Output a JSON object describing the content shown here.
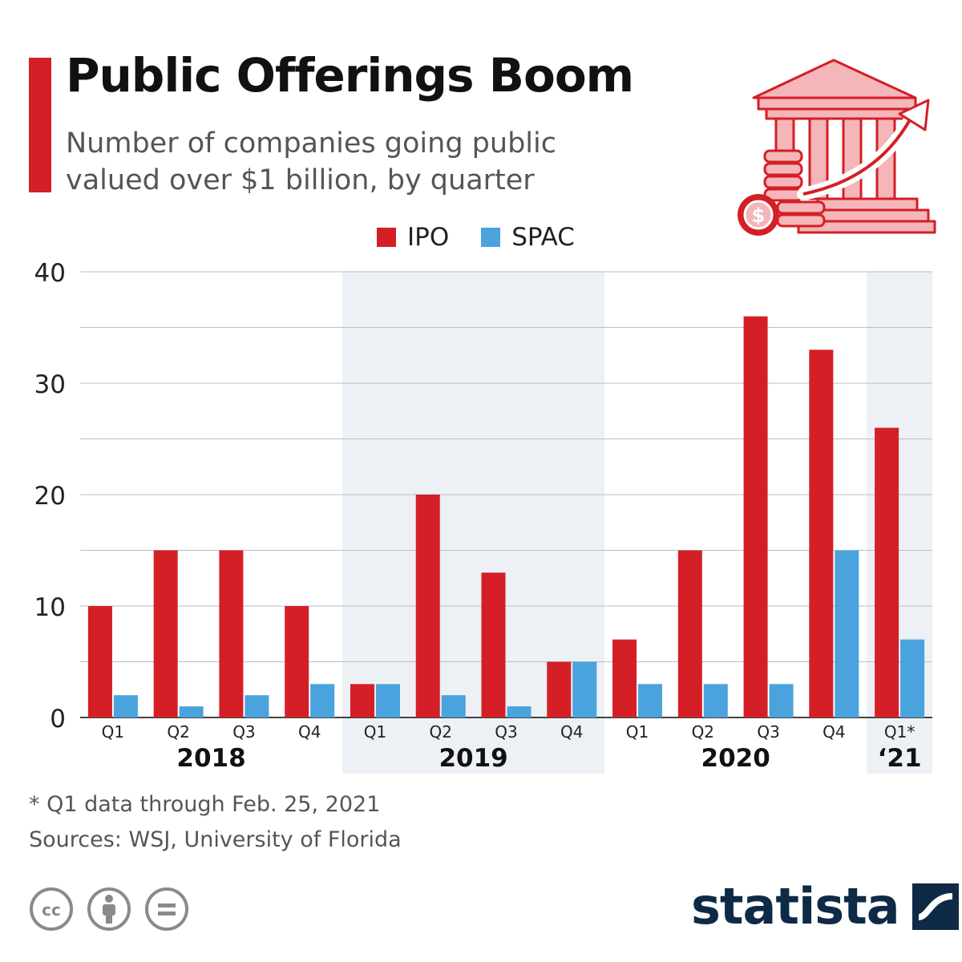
{
  "header": {
    "title": "Public Offerings Boom",
    "subtitle": "Number of companies going public\nvalued over $1 billion, by quarter"
  },
  "colors": {
    "ipo": "#d41f26",
    "spac": "#4aa3dc",
    "band": "#edf1f6",
    "grid": "#b9bec5",
    "accent": "#d41f26",
    "brand": "#0e2a47"
  },
  "icons": {
    "header": "bank-with-coins-and-arrow-icon",
    "license": [
      "cc-icon",
      "attribution-icon",
      "no-derivatives-icon"
    ],
    "brand": "statista-logo-icon"
  },
  "chart_data": {
    "type": "bar",
    "title": "Public Offerings Boom",
    "subtitle": "Number of companies going public valued over $1 billion, by quarter",
    "xlabel": "",
    "ylabel": "",
    "ylim": [
      0,
      40
    ],
    "yticks": [
      0,
      10,
      20,
      30,
      40
    ],
    "grid": true,
    "legend_position": "top-center",
    "categories": [
      "Q1",
      "Q2",
      "Q3",
      "Q4",
      "Q1",
      "Q2",
      "Q3",
      "Q4",
      "Q1",
      "Q2",
      "Q3",
      "Q4",
      "Q1*"
    ],
    "year_groups": [
      {
        "label": "2018",
        "count": 4,
        "shaded": false
      },
      {
        "label": "2019",
        "count": 4,
        "shaded": true
      },
      {
        "label": "2020",
        "count": 4,
        "shaded": false
      },
      {
        "label": "‘21",
        "count": 1,
        "shaded": true
      }
    ],
    "series": [
      {
        "name": "IPO",
        "values": [
          10,
          15,
          15,
          10,
          3,
          20,
          13,
          5,
          7,
          15,
          36,
          33,
          26
        ]
      },
      {
        "name": "SPAC",
        "values": [
          2,
          1,
          2,
          3,
          3,
          2,
          1,
          5,
          3,
          3,
          3,
          15,
          7
        ]
      }
    ]
  },
  "footer": {
    "footnote": "* Q1 data through Feb. 25, 2021",
    "sources": "Sources: WSJ, University of Florida",
    "brand": "statista"
  }
}
